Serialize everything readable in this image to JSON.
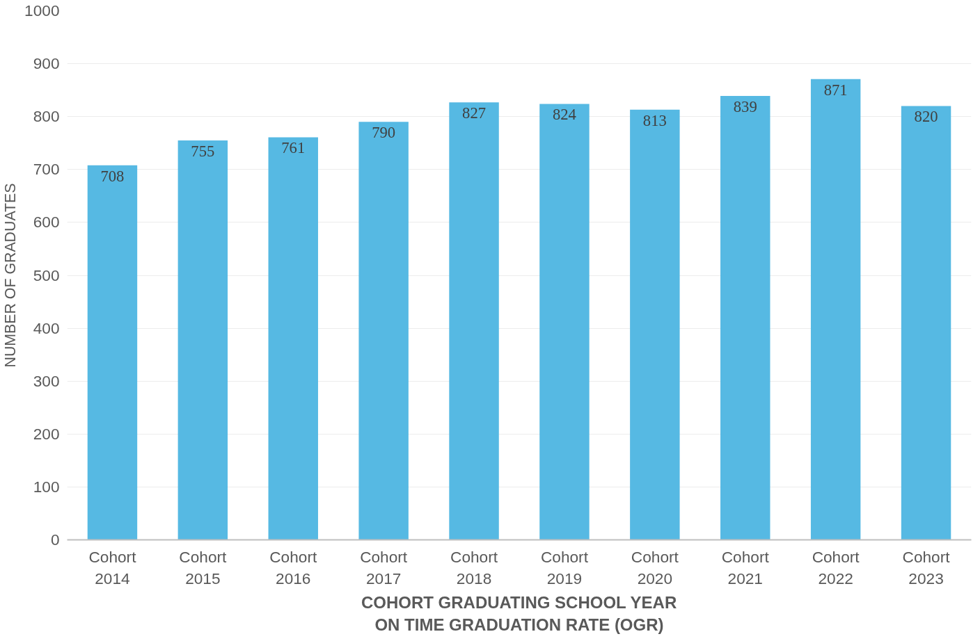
{
  "chart_data": {
    "type": "bar",
    "xlabel": "COHORT GRADUATING SCHOOL YEAR\nON TIME GRADUATION RATE (OGR)",
    "ylabel": "NUMBER OF GRADUATES",
    "categories": [
      "Cohort 2014",
      "Cohort 2015",
      "Cohort 2016",
      "Cohort 2017",
      "Cohort 2018",
      "Cohort 2019",
      "Cohort 2020",
      "Cohort 2021",
      "Cohort 2022",
      "Cohort 2023"
    ],
    "values": [
      708,
      755,
      761,
      790,
      827,
      824,
      813,
      839,
      871,
      820
    ],
    "color": "#56b9e3",
    "ylim": [
      0,
      1000
    ],
    "yticks": [
      0,
      100,
      200,
      300,
      400,
      500,
      600,
      700,
      800,
      900,
      1000
    ],
    "grid": "y",
    "data_labels": true
  }
}
